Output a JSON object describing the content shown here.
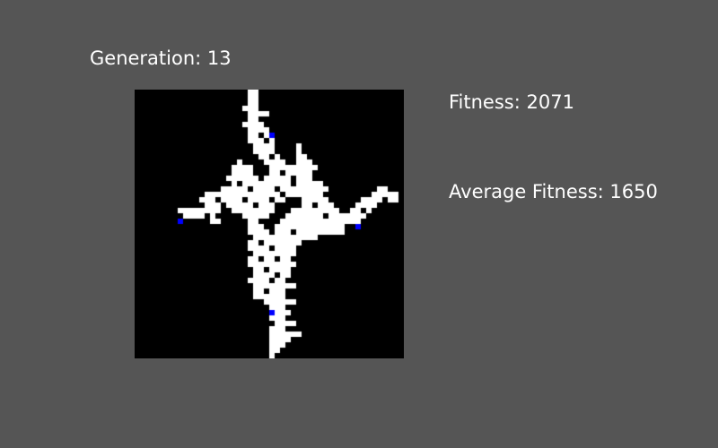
{
  "generation": {
    "label": "Generation:",
    "value": "13"
  },
  "fitness": {
    "label": "Fitness:",
    "value": "2071"
  },
  "average_fitness": {
    "label": "Average Fitness:",
    "value": "1650"
  },
  "colors": {
    "background": "#555555",
    "grid_background": "#000000",
    "cell": "#ffffff",
    "marker": "#0000ff",
    "text": "#ffffff"
  },
  "grid": {
    "cols": 50,
    "rows": 50,
    "cells": [
      [
        21,
        0
      ],
      [
        22,
        0
      ],
      [
        21,
        1
      ],
      [
        22,
        1
      ],
      [
        21,
        2
      ],
      [
        22,
        2
      ],
      [
        20,
        3
      ],
      [
        21,
        3
      ],
      [
        22,
        3
      ],
      [
        21,
        4
      ],
      [
        22,
        4
      ],
      [
        23,
        4
      ],
      [
        24,
        4
      ],
      [
        21,
        5
      ],
      [
        22,
        5
      ],
      [
        20,
        6
      ],
      [
        21,
        6
      ],
      [
        22,
        6
      ],
      [
        23,
        6
      ],
      [
        21,
        7
      ],
      [
        22,
        7
      ],
      [
        23,
        7
      ],
      [
        24,
        7
      ],
      [
        21,
        8
      ],
      [
        22,
        8
      ],
      [
        24,
        8
      ],
      [
        21,
        9
      ],
      [
        22,
        9
      ],
      [
        23,
        9
      ],
      [
        25,
        9
      ],
      [
        22,
        10
      ],
      [
        23,
        10
      ],
      [
        24,
        10
      ],
      [
        25,
        10
      ],
      [
        30,
        10
      ],
      [
        22,
        11
      ],
      [
        23,
        11
      ],
      [
        24,
        11
      ],
      [
        25,
        11
      ],
      [
        30,
        11
      ],
      [
        23,
        12
      ],
      [
        24,
        12
      ],
      [
        26,
        12
      ],
      [
        30,
        12
      ],
      [
        31,
        12
      ],
      [
        19,
        13
      ],
      [
        24,
        13
      ],
      [
        25,
        13
      ],
      [
        26,
        13
      ],
      [
        27,
        13
      ],
      [
        30,
        13
      ],
      [
        31,
        13
      ],
      [
        32,
        13
      ],
      [
        18,
        14
      ],
      [
        19,
        14
      ],
      [
        20,
        14
      ],
      [
        21,
        14
      ],
      [
        25,
        14
      ],
      [
        26,
        14
      ],
      [
        27,
        14
      ],
      [
        28,
        14
      ],
      [
        29,
        14
      ],
      [
        30,
        14
      ],
      [
        31,
        14
      ],
      [
        32,
        14
      ],
      [
        33,
        14
      ],
      [
        18,
        15
      ],
      [
        19,
        15
      ],
      [
        20,
        15
      ],
      [
        21,
        15
      ],
      [
        25,
        15
      ],
      [
        26,
        15
      ],
      [
        28,
        15
      ],
      [
        29,
        15
      ],
      [
        30,
        15
      ],
      [
        31,
        15
      ],
      [
        32,
        15
      ],
      [
        17,
        16
      ],
      [
        18,
        16
      ],
      [
        19,
        16
      ],
      [
        20,
        16
      ],
      [
        21,
        16
      ],
      [
        22,
        16
      ],
      [
        24,
        16
      ],
      [
        25,
        16
      ],
      [
        26,
        16
      ],
      [
        27,
        16
      ],
      [
        28,
        16
      ],
      [
        30,
        16
      ],
      [
        31,
        16
      ],
      [
        32,
        16
      ],
      [
        18,
        17
      ],
      [
        20,
        17
      ],
      [
        21,
        17
      ],
      [
        22,
        17
      ],
      [
        23,
        17
      ],
      [
        24,
        17
      ],
      [
        25,
        17
      ],
      [
        26,
        17
      ],
      [
        27,
        17
      ],
      [
        28,
        17
      ],
      [
        30,
        17
      ],
      [
        31,
        17
      ],
      [
        32,
        17
      ],
      [
        33,
        17
      ],
      [
        34,
        17
      ],
      [
        16,
        18
      ],
      [
        17,
        18
      ],
      [
        18,
        18
      ],
      [
        19,
        18
      ],
      [
        20,
        18
      ],
      [
        22,
        18
      ],
      [
        23,
        18
      ],
      [
        24,
        18
      ],
      [
        25,
        18
      ],
      [
        27,
        18
      ],
      [
        28,
        18
      ],
      [
        29,
        18
      ],
      [
        30,
        18
      ],
      [
        31,
        18
      ],
      [
        32,
        18
      ],
      [
        33,
        18
      ],
      [
        34,
        18
      ],
      [
        35,
        18
      ],
      [
        45,
        18
      ],
      [
        46,
        18
      ],
      [
        13,
        19
      ],
      [
        14,
        19
      ],
      [
        15,
        19
      ],
      [
        16,
        19
      ],
      [
        17,
        19
      ],
      [
        18,
        19
      ],
      [
        19,
        19
      ],
      [
        20,
        19
      ],
      [
        21,
        19
      ],
      [
        22,
        19
      ],
      [
        23,
        19
      ],
      [
        24,
        19
      ],
      [
        25,
        19
      ],
      [
        26,
        19
      ],
      [
        28,
        19
      ],
      [
        29,
        19
      ],
      [
        30,
        19
      ],
      [
        31,
        19
      ],
      [
        32,
        19
      ],
      [
        33,
        19
      ],
      [
        34,
        19
      ],
      [
        44,
        19
      ],
      [
        45,
        19
      ],
      [
        46,
        19
      ],
      [
        47,
        19
      ],
      [
        48,
        19
      ],
      [
        12,
        20
      ],
      [
        13,
        20
      ],
      [
        14,
        20
      ],
      [
        16,
        20
      ],
      [
        17,
        20
      ],
      [
        18,
        20
      ],
      [
        19,
        20
      ],
      [
        21,
        20
      ],
      [
        22,
        20
      ],
      [
        23,
        20
      ],
      [
        24,
        20
      ],
      [
        26,
        20
      ],
      [
        27,
        20
      ],
      [
        31,
        20
      ],
      [
        32,
        20
      ],
      [
        33,
        20
      ],
      [
        34,
        20
      ],
      [
        35,
        20
      ],
      [
        42,
        20
      ],
      [
        43,
        20
      ],
      [
        44,
        20
      ],
      [
        45,
        20
      ],
      [
        47,
        20
      ],
      [
        48,
        20
      ],
      [
        13,
        21
      ],
      [
        14,
        21
      ],
      [
        15,
        21
      ],
      [
        17,
        21
      ],
      [
        18,
        21
      ],
      [
        19,
        21
      ],
      [
        20,
        21
      ],
      [
        21,
        21
      ],
      [
        23,
        21
      ],
      [
        24,
        21
      ],
      [
        25,
        21
      ],
      [
        31,
        21
      ],
      [
        32,
        21
      ],
      [
        34,
        21
      ],
      [
        35,
        21
      ],
      [
        36,
        21
      ],
      [
        41,
        21
      ],
      [
        42,
        21
      ],
      [
        43,
        21
      ],
      [
        44,
        21
      ],
      [
        8,
        22
      ],
      [
        9,
        22
      ],
      [
        10,
        22
      ],
      [
        11,
        22
      ],
      [
        12,
        22
      ],
      [
        13,
        22
      ],
      [
        14,
        22
      ],
      [
        15,
        22
      ],
      [
        18,
        22
      ],
      [
        19,
        22
      ],
      [
        20,
        22
      ],
      [
        21,
        22
      ],
      [
        22,
        22
      ],
      [
        23,
        22
      ],
      [
        24,
        22
      ],
      [
        25,
        22
      ],
      [
        29,
        22
      ],
      [
        30,
        22
      ],
      [
        31,
        22
      ],
      [
        32,
        22
      ],
      [
        33,
        22
      ],
      [
        34,
        22
      ],
      [
        35,
        22
      ],
      [
        36,
        22
      ],
      [
        37,
        22
      ],
      [
        40,
        22
      ],
      [
        41,
        22
      ],
      [
        43,
        22
      ],
      [
        9,
        23
      ],
      [
        10,
        23
      ],
      [
        11,
        23
      ],
      [
        12,
        23
      ],
      [
        14,
        23
      ],
      [
        20,
        23
      ],
      [
        21,
        23
      ],
      [
        22,
        23
      ],
      [
        23,
        23
      ],
      [
        24,
        23
      ],
      [
        28,
        23
      ],
      [
        29,
        23
      ],
      [
        30,
        23
      ],
      [
        31,
        23
      ],
      [
        32,
        23
      ],
      [
        33,
        23
      ],
      [
        34,
        23
      ],
      [
        36,
        23
      ],
      [
        37,
        23
      ],
      [
        38,
        23
      ],
      [
        39,
        23
      ],
      [
        40,
        23
      ],
      [
        41,
        23
      ],
      [
        42,
        23
      ],
      [
        14,
        24
      ],
      [
        15,
        24
      ],
      [
        21,
        24
      ],
      [
        22,
        24
      ],
      [
        27,
        24
      ],
      [
        28,
        24
      ],
      [
        29,
        24
      ],
      [
        30,
        24
      ],
      [
        31,
        24
      ],
      [
        32,
        24
      ],
      [
        33,
        24
      ],
      [
        34,
        24
      ],
      [
        35,
        24
      ],
      [
        36,
        24
      ],
      [
        37,
        24
      ],
      [
        38,
        24
      ],
      [
        39,
        24
      ],
      [
        40,
        24
      ],
      [
        41,
        24
      ],
      [
        21,
        25
      ],
      [
        22,
        25
      ],
      [
        23,
        25
      ],
      [
        26,
        25
      ],
      [
        27,
        25
      ],
      [
        28,
        25
      ],
      [
        29,
        25
      ],
      [
        30,
        25
      ],
      [
        31,
        25
      ],
      [
        32,
        25
      ],
      [
        33,
        25
      ],
      [
        34,
        25
      ],
      [
        35,
        25
      ],
      [
        36,
        25
      ],
      [
        37,
        25
      ],
      [
        38,
        25
      ],
      [
        21,
        26
      ],
      [
        22,
        26
      ],
      [
        23,
        26
      ],
      [
        24,
        26
      ],
      [
        26,
        26
      ],
      [
        27,
        26
      ],
      [
        28,
        26
      ],
      [
        30,
        26
      ],
      [
        31,
        26
      ],
      [
        32,
        26
      ],
      [
        33,
        26
      ],
      [
        34,
        26
      ],
      [
        35,
        26
      ],
      [
        36,
        26
      ],
      [
        37,
        26
      ],
      [
        38,
        26
      ],
      [
        22,
        27
      ],
      [
        23,
        27
      ],
      [
        24,
        27
      ],
      [
        25,
        27
      ],
      [
        26,
        27
      ],
      [
        27,
        27
      ],
      [
        28,
        27
      ],
      [
        29,
        27
      ],
      [
        30,
        27
      ],
      [
        31,
        27
      ],
      [
        32,
        27
      ],
      [
        33,
        27
      ],
      [
        21,
        28
      ],
      [
        22,
        28
      ],
      [
        24,
        28
      ],
      [
        25,
        28
      ],
      [
        26,
        28
      ],
      [
        27,
        28
      ],
      [
        28,
        28
      ],
      [
        29,
        28
      ],
      [
        30,
        28
      ],
      [
        21,
        29
      ],
      [
        22,
        29
      ],
      [
        23,
        29
      ],
      [
        24,
        29
      ],
      [
        26,
        29
      ],
      [
        27,
        29
      ],
      [
        28,
        29
      ],
      [
        29,
        29
      ],
      [
        22,
        30
      ],
      [
        23,
        30
      ],
      [
        24,
        30
      ],
      [
        25,
        30
      ],
      [
        26,
        30
      ],
      [
        27,
        30
      ],
      [
        28,
        30
      ],
      [
        29,
        30
      ],
      [
        21,
        31
      ],
      [
        22,
        31
      ],
      [
        24,
        31
      ],
      [
        25,
        31
      ],
      [
        27,
        31
      ],
      [
        28,
        31
      ],
      [
        21,
        32
      ],
      [
        22,
        32
      ],
      [
        23,
        32
      ],
      [
        24,
        32
      ],
      [
        25,
        32
      ],
      [
        26,
        32
      ],
      [
        27,
        32
      ],
      [
        28,
        32
      ],
      [
        29,
        32
      ],
      [
        22,
        33
      ],
      [
        23,
        33
      ],
      [
        25,
        33
      ],
      [
        26,
        33
      ],
      [
        27,
        33
      ],
      [
        28,
        33
      ],
      [
        22,
        34
      ],
      [
        23,
        34
      ],
      [
        24,
        34
      ],
      [
        25,
        34
      ],
      [
        27,
        34
      ],
      [
        28,
        34
      ],
      [
        21,
        35
      ],
      [
        22,
        35
      ],
      [
        23,
        35
      ],
      [
        24,
        35
      ],
      [
        26,
        35
      ],
      [
        27,
        35
      ],
      [
        22,
        36
      ],
      [
        23,
        36
      ],
      [
        24,
        36
      ],
      [
        25,
        36
      ],
      [
        26,
        36
      ],
      [
        27,
        36
      ],
      [
        28,
        36
      ],
      [
        29,
        36
      ],
      [
        22,
        37
      ],
      [
        23,
        37
      ],
      [
        25,
        37
      ],
      [
        26,
        37
      ],
      [
        27,
        37
      ],
      [
        22,
        38
      ],
      [
        23,
        38
      ],
      [
        24,
        38
      ],
      [
        25,
        38
      ],
      [
        26,
        38
      ],
      [
        27,
        38
      ],
      [
        24,
        39
      ],
      [
        25,
        39
      ],
      [
        26,
        39
      ],
      [
        27,
        39
      ],
      [
        28,
        39
      ],
      [
        29,
        39
      ],
      [
        25,
        40
      ],
      [
        26,
        40
      ],
      [
        27,
        40
      ],
      [
        25,
        41
      ],
      [
        26,
        41
      ],
      [
        27,
        41
      ],
      [
        28,
        41
      ],
      [
        25,
        42
      ],
      [
        26,
        42
      ],
      [
        27,
        42
      ],
      [
        26,
        43
      ],
      [
        27,
        43
      ],
      [
        28,
        43
      ],
      [
        29,
        43
      ],
      [
        25,
        44
      ],
      [
        26,
        44
      ],
      [
        27,
        44
      ],
      [
        25,
        45
      ],
      [
        26,
        45
      ],
      [
        27,
        45
      ],
      [
        28,
        45
      ],
      [
        29,
        45
      ],
      [
        30,
        45
      ],
      [
        25,
        46
      ],
      [
        26,
        46
      ],
      [
        27,
        46
      ],
      [
        28,
        46
      ],
      [
        25,
        47
      ],
      [
        26,
        47
      ],
      [
        27,
        47
      ],
      [
        25,
        48
      ],
      [
        26,
        48
      ],
      [
        25,
        49
      ]
    ],
    "markers": [
      [
        25,
        8
      ],
      [
        8,
        24
      ],
      [
        41,
        25
      ],
      [
        25,
        41
      ]
    ]
  }
}
